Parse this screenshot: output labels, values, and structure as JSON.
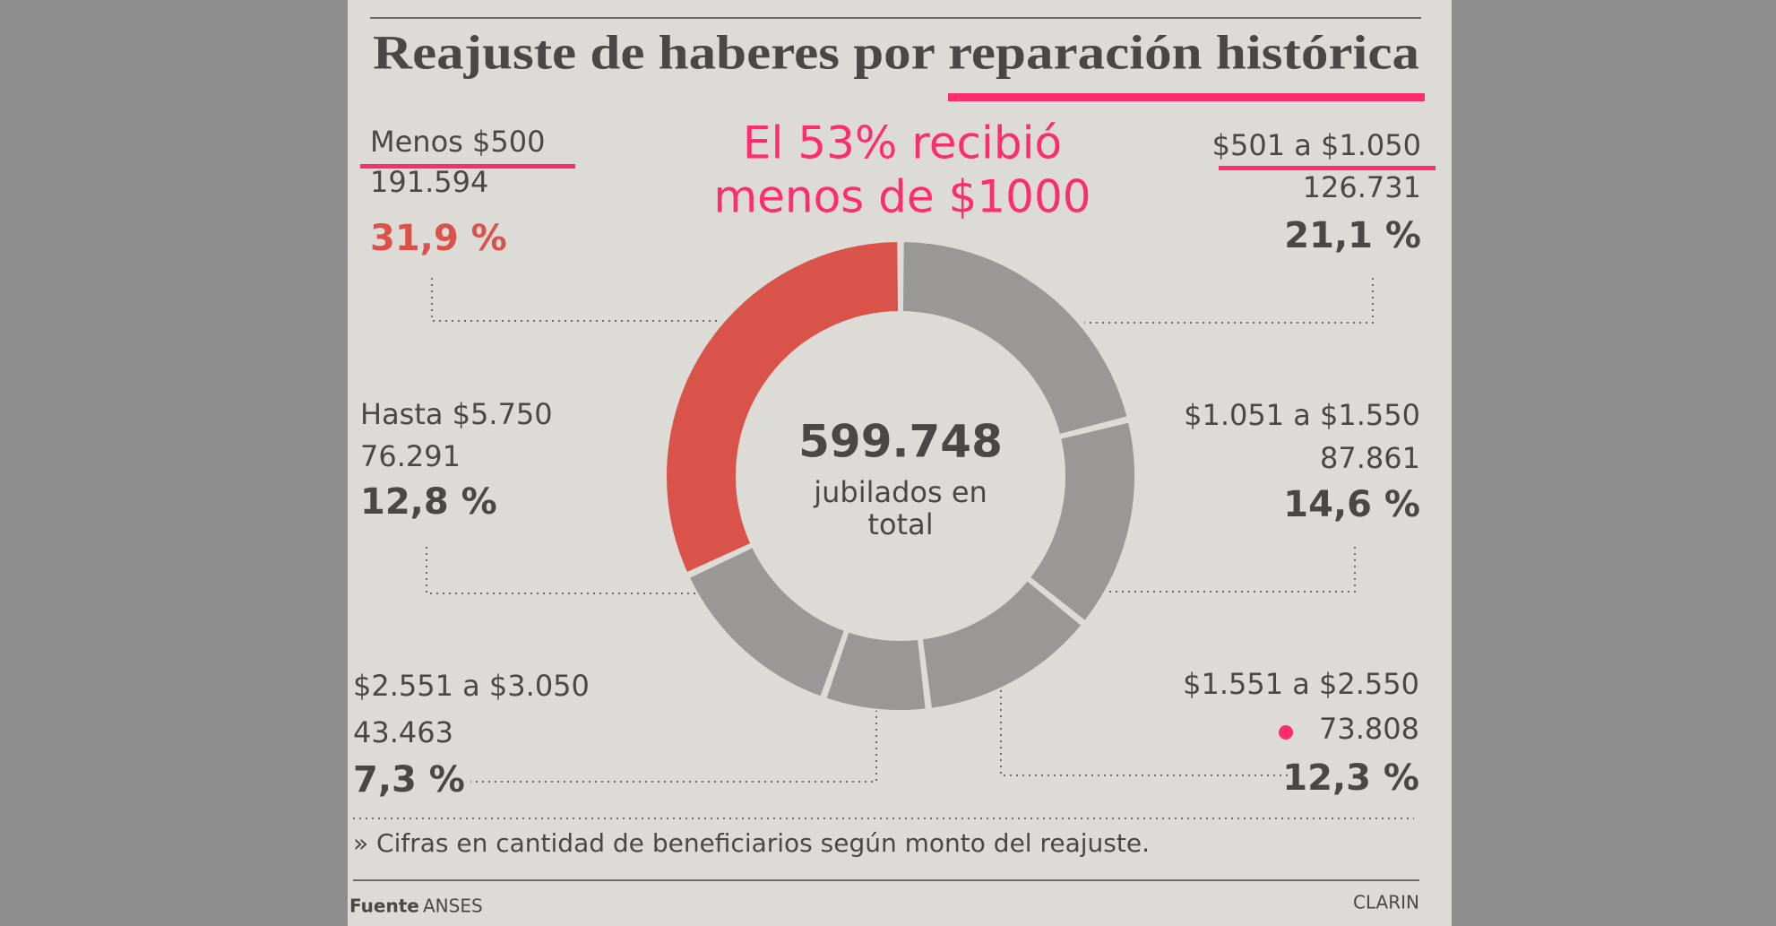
{
  "chart_data": {
    "type": "donut",
    "title": "Reajuste de haberes por reparación histórica",
    "annotation": [
      "El 53% recibió",
      "menos de $1000"
    ],
    "categories": [
      "Menos $500",
      "$501 a $1.050",
      "$1.051 a $1.550",
      "$1.551 a $2.550",
      "$2.551 a $3.050",
      "Hasta $5.750"
    ],
    "values": [
      31.9,
      21.1,
      14.6,
      12.3,
      7.3,
      12.8
    ],
    "value_labels": [
      "31,9 %",
      "21,1 %",
      "14,6 %",
      "12,3 %",
      "7,3 %",
      "12,8 %"
    ],
    "counts": [
      191594,
      126731,
      87861,
      73808,
      43463,
      76291
    ],
    "count_labels": [
      "191.594",
      "126.731",
      "87.861",
      "73.808",
      "43.463",
      "76.291"
    ],
    "colors": [
      "#d9534a",
      "#9a9896",
      "#9a9896",
      "#9a9896",
      "#9a9896",
      "#9a9896"
    ],
    "total": 599748,
    "total_label": "599.748",
    "total_caption": [
      "jubilados en",
      "total"
    ],
    "footnote": "» Cifras en cantidad de beneficiarios según monto del reajuste.",
    "source_label": "Fuente",
    "source": "ANSES",
    "credit": "CLARIN"
  }
}
